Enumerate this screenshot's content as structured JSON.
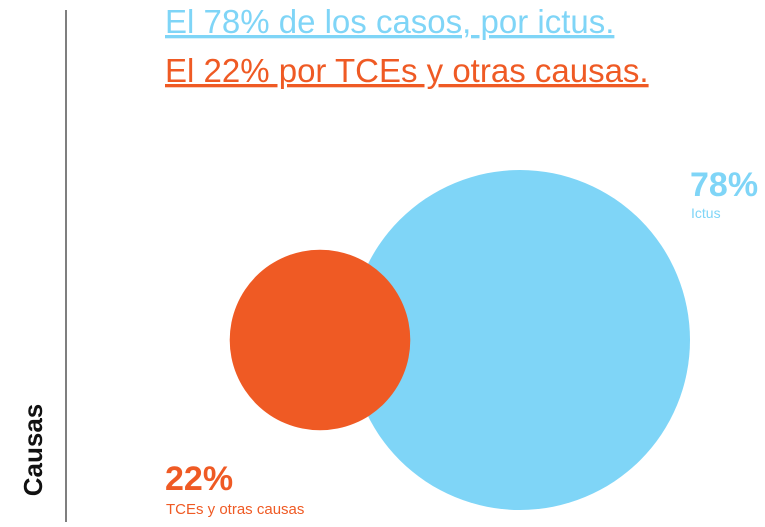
{
  "chart_data": {
    "type": "bubble",
    "side_label": "Causas",
    "annotations": [
      "El 78% de los casos, por ictus.",
      "El 22% por TCEs y otras causas."
    ],
    "categories": [
      "Ictus",
      "TCEs y otras causas"
    ],
    "values": [
      78,
      22
    ],
    "value_labels": [
      "78%",
      "22%"
    ],
    "colors": [
      "#7fd5f7",
      "#ef5a24"
    ]
  }
}
